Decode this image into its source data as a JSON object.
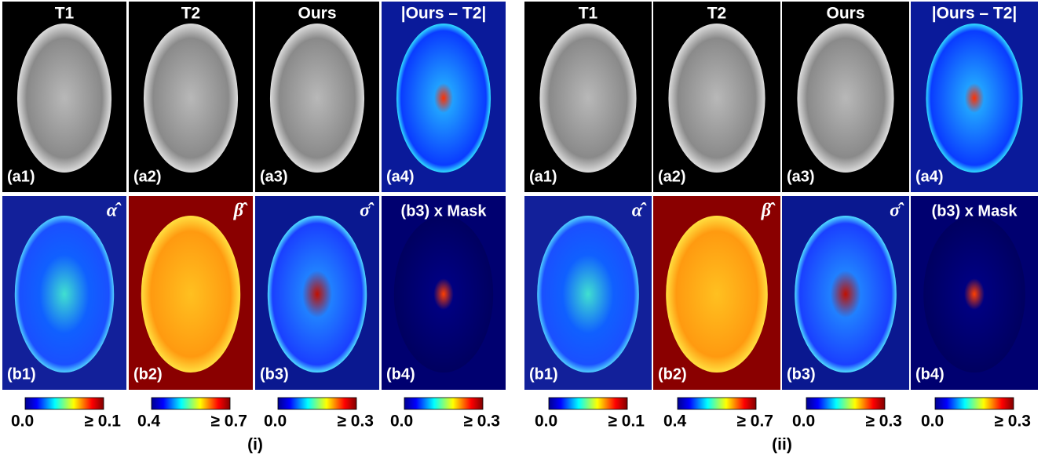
{
  "groups": [
    {
      "label": "(i)",
      "column_titles": [
        "T1",
        "T2",
        "Ours",
        "|Ours – T2|"
      ],
      "top_labels": [
        "(a1)",
        "(a2)",
        "(a3)",
        "(a4)"
      ],
      "bottom_labels": [
        "(b1)",
        "(b2)",
        "(b3)",
        "(b4)"
      ],
      "bottom_tags": [
        "α̂",
        "β̂",
        "σ̂",
        "(b3) x Mask"
      ],
      "colorbars": [
        {
          "min": "0.0",
          "max": "≥ 0.1"
        },
        {
          "min": "0.4",
          "max": "≥ 0.7"
        },
        {
          "min": "0.0",
          "max": "≥ 0.3"
        },
        {
          "min": "0.0",
          "max": "≥ 0.3"
        }
      ]
    },
    {
      "label": "(ii)",
      "column_titles": [
        "T1",
        "T2",
        "Ours",
        "|Ours – T2|"
      ],
      "top_labels": [
        "(a1)",
        "(a2)",
        "(a3)",
        "(a4)"
      ],
      "bottom_labels": [
        "(b1)",
        "(b2)",
        "(b3)",
        "(b4)"
      ],
      "bottom_tags": [
        "α̂",
        "β̂",
        "σ̂",
        "(b3) x Mask"
      ],
      "colorbars": [
        {
          "min": "0.0",
          "max": "≥ 0.1"
        },
        {
          "min": "0.4",
          "max": "≥ 0.7"
        },
        {
          "min": "0.0",
          "max": "≥ 0.3"
        },
        {
          "min": "0.0",
          "max": "≥ 0.3"
        }
      ]
    }
  ]
}
